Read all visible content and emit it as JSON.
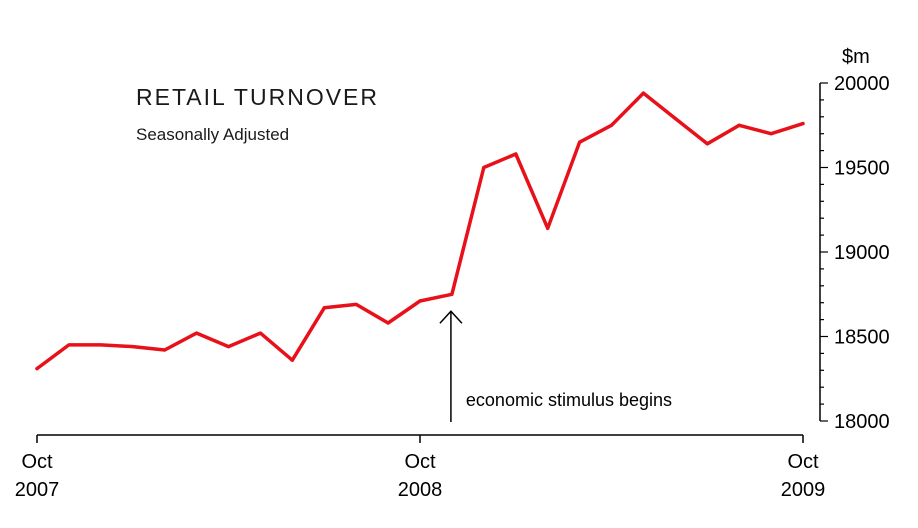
{
  "chart_data": {
    "type": "line",
    "title": "RETAIL TURNOVER",
    "subtitle": "Seasonally Adjusted",
    "y_unit": "$m",
    "ylim": [
      18000,
      20000
    ],
    "y_ticks": [
      "18000",
      "18500",
      "19000",
      "19500",
      "20000"
    ],
    "x_ticks": [
      {
        "month": "Oct",
        "year": "2007"
      },
      {
        "month": "Oct",
        "year": "2008"
      },
      {
        "month": "Oct",
        "year": "2009"
      }
    ],
    "x": [
      "2007-10",
      "2007-11",
      "2007-12",
      "2008-01",
      "2008-02",
      "2008-03",
      "2008-04",
      "2008-05",
      "2008-06",
      "2008-07",
      "2008-08",
      "2008-09",
      "2008-10",
      "2008-11",
      "2008-12",
      "2009-01",
      "2009-02",
      "2009-03",
      "2009-04",
      "2009-05",
      "2009-06",
      "2009-07",
      "2009-08",
      "2009-09",
      "2009-10"
    ],
    "series": [
      {
        "values": [
          18310,
          18450,
          18450,
          18440,
          18420,
          18520,
          18440,
          18520,
          18360,
          18670,
          18690,
          18580,
          18710,
          18750,
          19500,
          19580,
          19140,
          19650,
          19750,
          19940,
          19790,
          19640,
          19750,
          19700,
          19760
        ]
      }
    ],
    "annotation": "economic stimulus begins",
    "annotation_x": "2008-11",
    "line_color": "#e8111a",
    "grid": false,
    "legend": "none"
  }
}
